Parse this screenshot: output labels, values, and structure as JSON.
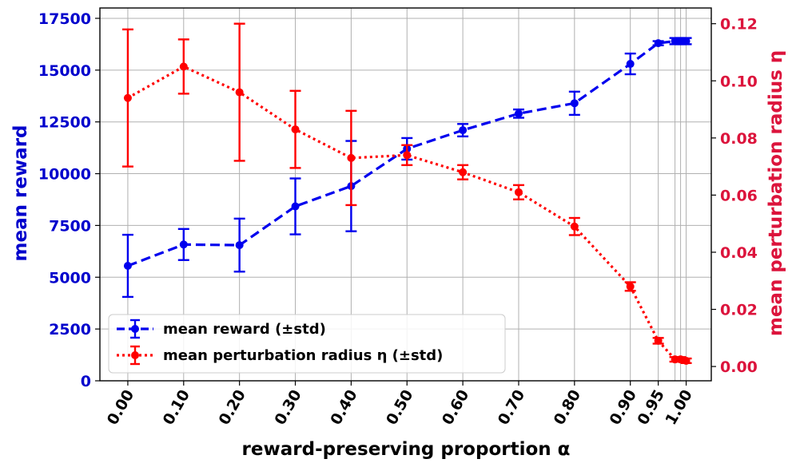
{
  "chart_data": {
    "type": "line",
    "xlabel": "reward-preserving proportion α",
    "ylabel_left": "mean reward",
    "ylabel_right": "mean perturbation radius η",
    "x_tick_labels": [
      "0.00",
      "0.10",
      "0.20",
      "0.30",
      "0.40",
      "0.50",
      "0.60",
      "0.70",
      "0.80",
      "0.90",
      "0.95",
      "1.00"
    ],
    "x_ticks": [
      0.0,
      0.1,
      0.2,
      0.3,
      0.4,
      0.5,
      0.6,
      0.7,
      0.8,
      0.9,
      0.95,
      1.0
    ],
    "x_extra_gridlines": [
      0.98,
      0.99
    ],
    "xlim": [
      -0.05,
      1.045
    ],
    "ylim_left": [
      0,
      18000
    ],
    "yticks_left": [
      0,
      2500,
      5000,
      7500,
      10000,
      12500,
      15000,
      17500
    ],
    "ylim_right": [
      -0.005,
      0.1255
    ],
    "yticks_right": [
      "0.00",
      "0.02",
      "0.04",
      "0.06",
      "0.08",
      "0.10",
      "0.12"
    ],
    "grid": true,
    "legend_position": "lower-left",
    "series": [
      {
        "name": "mean reward (±std)",
        "axis": "left",
        "color": "#0000ee",
        "linestyle": "dashed",
        "x": [
          0.0,
          0.1,
          0.2,
          0.3,
          0.4,
          0.5,
          0.6,
          0.7,
          0.8,
          0.9,
          0.95,
          0.98,
          0.99,
          1.0
        ],
        "y": [
          5550,
          6580,
          6550,
          8420,
          9400,
          11200,
          12100,
          12900,
          13400,
          15300,
          16300,
          16400,
          16400,
          16400
        ],
        "err": [
          1500,
          750,
          1280,
          1350,
          2180,
          520,
          300,
          200,
          560,
          500,
          100,
          150,
          150,
          150
        ]
      },
      {
        "name": "mean perturbation radius η (±std)",
        "axis": "right",
        "color": "#ff0000",
        "linestyle": "dotted",
        "x": [
          0.0,
          0.1,
          0.2,
          0.3,
          0.4,
          0.5,
          0.6,
          0.7,
          0.8,
          0.9,
          0.95,
          0.98,
          0.99,
          1.0
        ],
        "y": [
          0.094,
          0.105,
          0.096,
          0.083,
          0.073,
          0.074,
          0.068,
          0.061,
          0.049,
          0.028,
          0.009,
          0.0025,
          0.0025,
          0.002
        ],
        "err": [
          0.024,
          0.0095,
          0.024,
          0.0135,
          0.0165,
          0.0035,
          0.0025,
          0.0025,
          0.003,
          0.0015,
          0.001,
          0.0008,
          0.0008,
          0.0008
        ]
      }
    ]
  },
  "colors": {
    "left_axis": "#0000cc",
    "right_axis": "#dc143c",
    "grid": "#b0b0b0"
  }
}
